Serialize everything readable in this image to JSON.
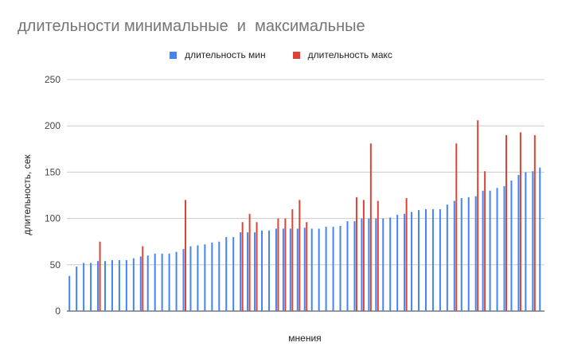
{
  "chart_data": {
    "type": "bar",
    "title": "длительности минимальные  и  максимальные",
    "xlabel": "мнения",
    "ylabel": "длительность, сек",
    "ylim": [
      0,
      250
    ],
    "yticks": [
      0,
      50,
      100,
      150,
      200,
      250
    ],
    "grid": true,
    "legend_position": "top",
    "series": [
      {
        "name": "длительность мин",
        "color": "#4285F4",
        "values": [
          38,
          48,
          52,
          52,
          54,
          54,
          55,
          55,
          55,
          57,
          59,
          60,
          62,
          62,
          62,
          64,
          67,
          70,
          71,
          72,
          74,
          75,
          80,
          80,
          85,
          85,
          85,
          87,
          87,
          89,
          89,
          89,
          89,
          90,
          89,
          89,
          91,
          91,
          92,
          97,
          97,
          100,
          100,
          100,
          100,
          101,
          104,
          105,
          107,
          109,
          110,
          110,
          110,
          115,
          119,
          122,
          123,
          124,
          130,
          130,
          133,
          135,
          141,
          147,
          150,
          151,
          155
        ]
      },
      {
        "name": "длительность макс",
        "color": "#DB4437",
        "values": [
          null,
          null,
          null,
          null,
          75,
          null,
          null,
          null,
          null,
          null,
          70,
          null,
          null,
          null,
          null,
          null,
          120,
          null,
          null,
          null,
          null,
          null,
          null,
          null,
          96,
          105,
          96,
          null,
          null,
          100,
          100,
          110,
          120,
          96,
          null,
          null,
          null,
          null,
          null,
          null,
          123,
          120,
          181,
          119,
          null,
          null,
          null,
          122,
          null,
          null,
          null,
          null,
          null,
          null,
          181,
          null,
          null,
          206,
          151,
          null,
          null,
          190,
          null,
          193,
          null,
          190,
          null
        ]
      }
    ]
  }
}
